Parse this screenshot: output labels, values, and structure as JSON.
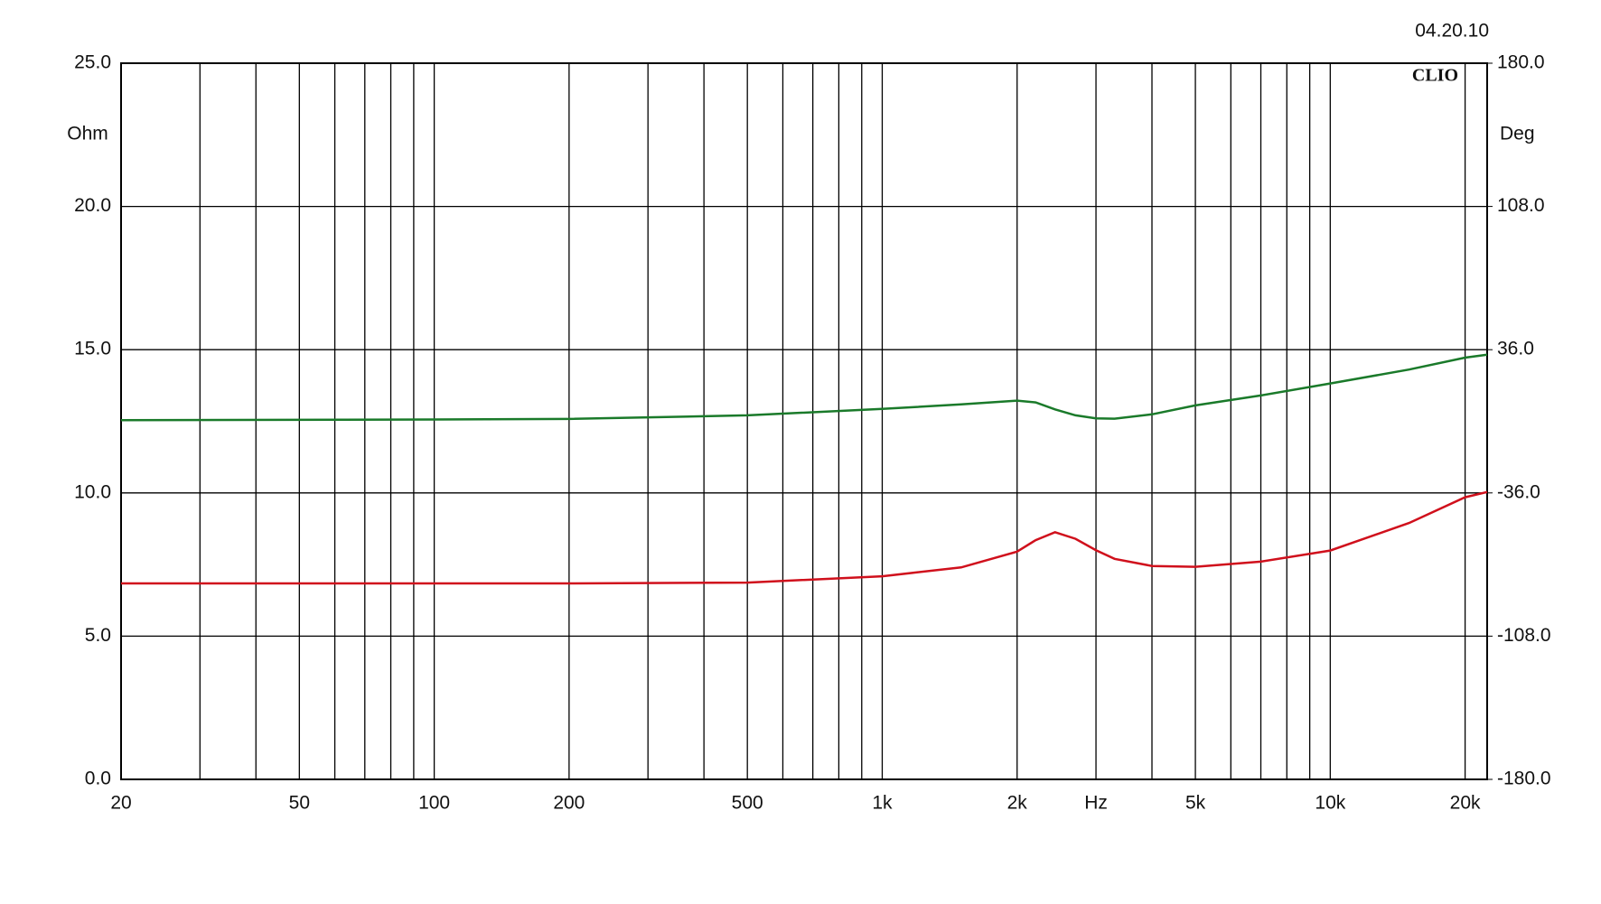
{
  "chart_data": {
    "type": "line",
    "date": "04.20.10",
    "brand": "CLIO",
    "ylabel": "Ohm",
    "y2label": "Deg",
    "xscale": "log",
    "grid": true,
    "xlim": [
      20,
      22400
    ],
    "xticks": [
      20,
      {
        "value": 50,
        "label": "50"
      },
      100,
      200,
      500,
      {
        "value": 1000,
        "label": "1k"
      },
      {
        "value": 2000,
        "label": "2k"
      },
      {
        "value": 3000,
        "label": "Hz"
      },
      {
        "value": 5000,
        "label": "5k"
      },
      {
        "value": 10000,
        "label": "10k"
      },
      {
        "value": 20000,
        "label": "20k"
      }
    ],
    "x_gridlines": [
      30,
      40,
      60,
      70,
      80,
      90,
      300,
      400,
      600,
      700,
      800,
      900,
      4000,
      6000,
      7000,
      8000,
      9000
    ],
    "ylim": [
      0,
      25
    ],
    "yticks": [
      {
        "value": 0,
        "label": "0.0"
      },
      {
        "value": 5,
        "label": "5.0"
      },
      {
        "value": 10,
        "label": "10.0"
      },
      {
        "value": 15,
        "label": "15.0"
      },
      {
        "value": 20,
        "label": "20.0"
      },
      {
        "value": 25,
        "label": "25.0"
      }
    ],
    "y2lim": [
      -180,
      180
    ],
    "y2ticks": [
      {
        "value": -180,
        "label": "-180.0"
      },
      {
        "value": -108,
        "label": "-108.0"
      },
      {
        "value": -36,
        "label": "-36.0"
      },
      {
        "value": 36,
        "label": "36.0"
      },
      {
        "value": 108,
        "label": "108.0"
      },
      {
        "value": 180,
        "label": "180.0"
      }
    ],
    "x": [
      20,
      100,
      200,
      500,
      1000,
      1500,
      2000,
      2200,
      2430,
      2700,
      3000,
      3300,
      4000,
      5000,
      7000,
      10000,
      15000,
      20000,
      22400
    ],
    "series": [
      {
        "color": "#d0101c",
        "axis": "y",
        "values": [
          6.84,
          6.84,
          6.84,
          6.87,
          7.09,
          7.4,
          7.95,
          8.35,
          8.63,
          8.4,
          8.0,
          7.7,
          7.45,
          7.42,
          7.6,
          7.99,
          8.95,
          9.85,
          10.03
        ]
      },
      {
        "color": "#1a7a2a",
        "axis": "y2",
        "values": [
          0.6,
          0.9,
          1.2,
          3,
          6.2,
          8.5,
          10.4,
          9.5,
          6,
          3,
          1.5,
          1.3,
          3.5,
          8,
          13,
          19,
          26,
          32,
          33.5
        ]
      }
    ]
  }
}
